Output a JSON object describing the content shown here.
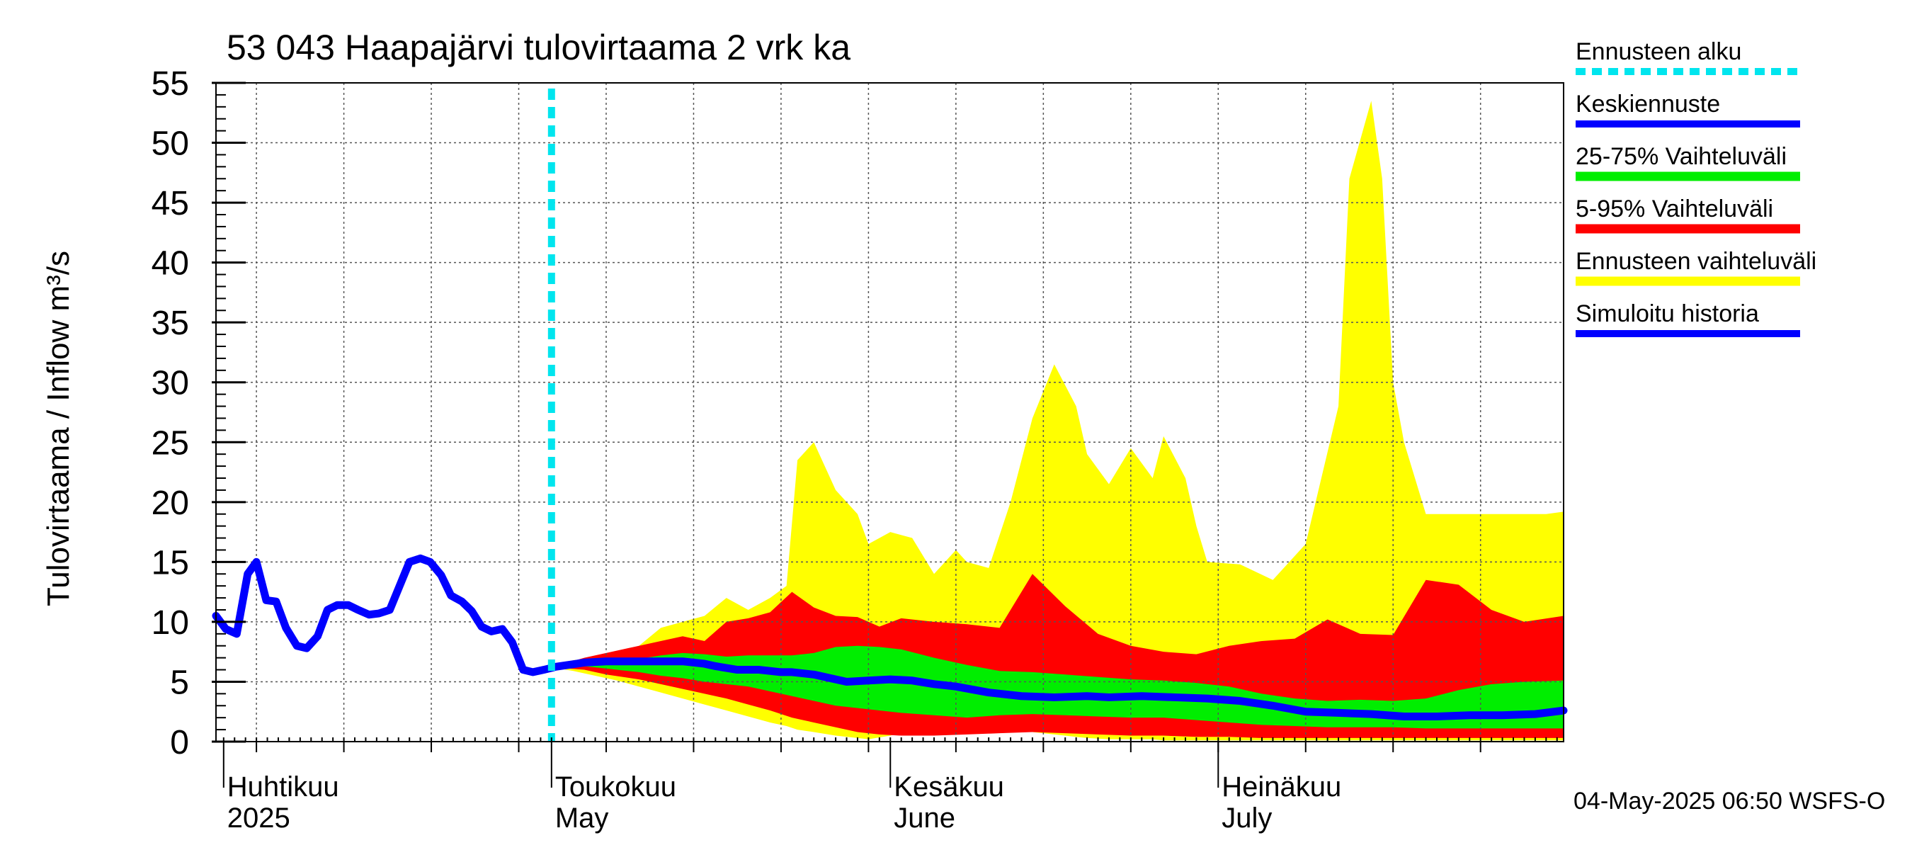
{
  "chart_data": {
    "type": "area",
    "title": "53 043 Haapajärvi tulovirtaama 2 vrk ka",
    "ylabel": "Tulovirtaama / Inflow    m³/s",
    "ylim": [
      0,
      55
    ],
    "yticks": [
      0,
      5,
      10,
      15,
      20,
      25,
      30,
      35,
      40,
      45,
      50,
      55
    ],
    "ytick_labels": [
      "0",
      "5",
      "10",
      "15",
      "20",
      "25",
      "30",
      "35",
      "40",
      "45",
      "50",
      "55"
    ],
    "x_unit": "day of year 2025",
    "xlim": [
      91.3,
      214.6
    ],
    "grid": true,
    "month_labels": [
      {
        "day": 92,
        "fi": "Huhtikuu",
        "en": "2025"
      },
      {
        "day": 122,
        "fi": "Toukokuu",
        "en": "May"
      },
      {
        "day": 153,
        "fi": "Kesäkuu",
        "en": "June"
      },
      {
        "day": 183,
        "fi": "Heinäkuu",
        "en": "July"
      }
    ],
    "forecast_start_day": 122,
    "timestamp": "04-May-2025 06:50 WSFS-O",
    "legend": [
      {
        "label": "Ennusteen alku",
        "color": "#00e5ee",
        "style": "dashed"
      },
      {
        "label": "Keskiennuste",
        "color": "#0000ff",
        "style": "line"
      },
      {
        "label": "25-75% Vaihteluväli",
        "color": "#00ee00",
        "style": "band"
      },
      {
        "label": "5-95% Vaihteluväli",
        "color": "#ff0000",
        "style": "band"
      },
      {
        "label": "Ennusteen vaihteluväli",
        "color": "#ffff00",
        "style": "band"
      },
      {
        "label": "Simuloitu historia",
        "color": "#0000ff",
        "style": "line"
      }
    ],
    "series": [
      {
        "name": "Simuloitu historia",
        "x": [
          91.3,
          92.2,
          93.2,
          94.2,
          95.0,
          95.9,
          96.8,
          97.7,
          98.7,
          99.6,
          100.6,
          101.5,
          102.4,
          103.4,
          104.3,
          105.3,
          106.2,
          107.2,
          108.1,
          109.0,
          110.0,
          110.9,
          111.9,
          112.8,
          113.8,
          114.7,
          115.6,
          116.5,
          117.5,
          118.4,
          119.4,
          120.3,
          121.3,
          122.2
        ],
        "y": [
          10.5,
          9.4,
          9.0,
          14.0,
          15.0,
          11.8,
          11.7,
          9.5,
          8.0,
          7.8,
          8.8,
          11.0,
          11.4,
          11.4,
          11.0,
          10.6,
          10.7,
          11.0,
          13.0,
          15.0,
          15.3,
          15.0,
          13.9,
          12.2,
          11.7,
          10.9,
          9.6,
          9.2,
          9.4,
          8.3,
          6.0,
          5.8,
          6.0,
          6.2
        ]
      },
      {
        "name": "Keskiennuste",
        "x": [
          122,
          125,
          127,
          130,
          132,
          134,
          136,
          137,
          139,
          141,
          143,
          144,
          146,
          148,
          149,
          151,
          153,
          155,
          157,
          159,
          162,
          165,
          168,
          171,
          173,
          176,
          179,
          182,
          185,
          188,
          191,
          194,
          197,
          200,
          203,
          206,
          209,
          212,
          214.6
        ],
        "y": [
          6.2,
          6.6,
          6.7,
          6.7,
          6.7,
          6.7,
          6.5,
          6.3,
          6.0,
          6.0,
          5.8,
          5.8,
          5.6,
          5.2,
          5.0,
          5.1,
          5.2,
          5.1,
          4.8,
          4.6,
          4.1,
          3.8,
          3.7,
          3.8,
          3.7,
          3.8,
          3.7,
          3.6,
          3.4,
          3.0,
          2.5,
          2.4,
          2.3,
          2.1,
          2.1,
          2.2,
          2.2,
          2.3,
          2.6
        ]
      },
      {
        "name": "25-75% Vaihteluväli",
        "x": [
          122,
          125,
          127,
          130,
          132,
          134,
          136,
          138,
          140,
          142,
          144,
          146,
          148,
          150,
          152,
          154,
          157,
          160,
          163,
          166,
          169,
          172,
          175,
          178,
          181,
          184,
          187,
          190,
          193,
          196,
          199,
          202,
          205,
          208,
          211,
          214.6
        ],
        "upper": [
          6.2,
          6.7,
          6.8,
          6.9,
          7.2,
          7.4,
          7.3,
          7.1,
          7.2,
          7.2,
          7.2,
          7.4,
          7.9,
          8.0,
          7.9,
          7.7,
          7.0,
          6.4,
          5.9,
          5.8,
          5.6,
          5.4,
          5.2,
          5.1,
          4.9,
          4.6,
          4.0,
          3.6,
          3.4,
          3.5,
          3.4,
          3.6,
          4.3,
          4.8,
          5.0,
          5.1
        ],
        "lower": [
          6.2,
          6.3,
          6.1,
          5.8,
          5.5,
          5.3,
          5.0,
          4.8,
          4.6,
          4.2,
          3.8,
          3.4,
          3.0,
          2.8,
          2.6,
          2.4,
          2.2,
          2.0,
          2.2,
          2.3,
          2.2,
          2.1,
          2.0,
          2.0,
          1.8,
          1.6,
          1.4,
          1.3,
          1.2,
          1.2,
          1.2,
          1.1,
          1.1,
          1.1,
          1.1,
          1.1
        ]
      },
      {
        "name": "5-95% Vaihteluväli",
        "x": [
          122,
          125,
          127,
          130,
          132,
          134,
          136,
          138,
          140,
          142,
          144,
          146,
          148,
          150,
          152,
          154,
          157,
          160,
          163,
          166,
          169,
          172,
          175,
          178,
          181,
          184,
          187,
          190,
          193,
          196,
          199,
          202,
          205,
          208,
          211,
          214.6
        ],
        "upper": [
          6.2,
          7.0,
          7.4,
          8.0,
          8.4,
          8.8,
          8.4,
          10.0,
          10.3,
          10.8,
          12.5,
          11.2,
          10.5,
          10.4,
          9.6,
          10.3,
          10.0,
          9.8,
          9.5,
          14.0,
          11.3,
          9.0,
          8.0,
          7.5,
          7.3,
          8.0,
          8.4,
          8.6,
          10.2,
          9.0,
          8.9,
          13.5,
          13.1,
          11.0,
          10.0,
          10.5
        ],
        "lower": [
          6.2,
          6.0,
          5.6,
          5.2,
          4.8,
          4.4,
          4.0,
          3.6,
          3.1,
          2.6,
          2.0,
          1.6,
          1.2,
          0.8,
          0.6,
          0.5,
          0.5,
          0.6,
          0.7,
          0.8,
          0.7,
          0.6,
          0.5,
          0.5,
          0.4,
          0.4,
          0.3,
          0.3,
          0.3,
          0.3,
          0.3,
          0.3,
          0.3,
          0.3,
          0.3,
          0.3
        ]
      },
      {
        "name": "Ennusteen vaihteluväli",
        "x": [
          122,
          124,
          126,
          128,
          130,
          132,
          134,
          136,
          138,
          140,
          142,
          143.5,
          144.5,
          146,
          148,
          150,
          151,
          153,
          155,
          157,
          159,
          160,
          162,
          164,
          166,
          168,
          170,
          171,
          173,
          175,
          177,
          178,
          180,
          181,
          182,
          185,
          188,
          191,
          194,
          195,
          197,
          198,
          199,
          200,
          202,
          204,
          207,
          210,
          213,
          214.6
        ],
        "upper": [
          6.2,
          6.8,
          7.0,
          7.5,
          8.0,
          9.5,
          10.0,
          10.5,
          12.0,
          11.0,
          12.0,
          13.0,
          23.5,
          25.0,
          21.0,
          19.0,
          16.5,
          17.5,
          17.0,
          14.0,
          16.0,
          15.0,
          14.5,
          20.0,
          27.0,
          31.5,
          28.0,
          24.0,
          21.5,
          24.5,
          22.0,
          25.5,
          22.0,
          18.0,
          15.0,
          14.8,
          13.5,
          16.5,
          28.0,
          47.0,
          53.5,
          47.0,
          30.0,
          25.0,
          19.0,
          19.0,
          19.0,
          19.0,
          19.0,
          19.2
        ],
        "lower": [
          6.2,
          5.9,
          5.5,
          5.1,
          4.6,
          4.1,
          3.6,
          3.1,
          2.6,
          2.1,
          1.6,
          1.3,
          1.0,
          0.8,
          0.5,
          0.3,
          0.2,
          0.5,
          1.0,
          1.3,
          1.5,
          1.4,
          1.2,
          1.0,
          0.8,
          0.6,
          0.4,
          0.3,
          0.2,
          0.2,
          0.2,
          0.1,
          0.1,
          0.1,
          0.1,
          0.1,
          0.1,
          0.1,
          0.1,
          0.1,
          0.1,
          0.1,
          0.1,
          0.1,
          0.1,
          0.1,
          0.1,
          0.1,
          0.1,
          0.1
        ]
      }
    ]
  }
}
